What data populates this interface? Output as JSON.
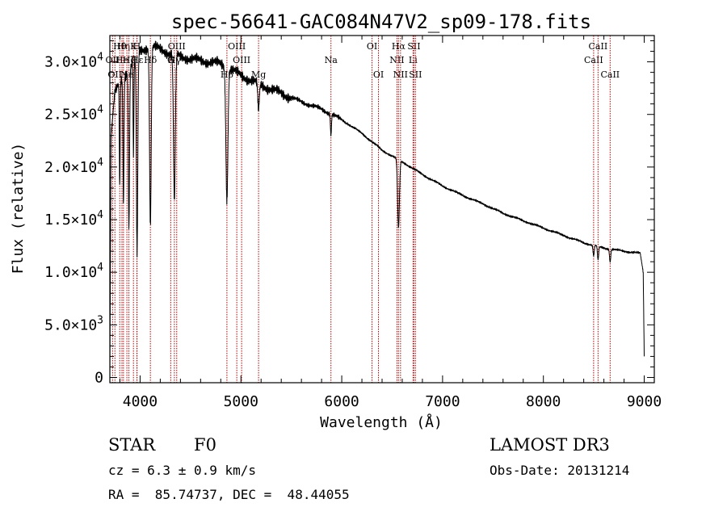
{
  "chart_data": {
    "type": "line",
    "title": "spec-56641-GAC084N47V2_sp09-178.fits",
    "xlabel": "Wavelength (Å)",
    "ylabel": "Flux (relative)",
    "xlim": [
      3700,
      9100
    ],
    "ylim": [
      -500,
      32500
    ],
    "x_ticks": [
      4000,
      5000,
      6000,
      7000,
      8000,
      9000
    ],
    "x_tick_labels": [
      "4000",
      "5000",
      "6000",
      "7000",
      "8000",
      "9000"
    ],
    "y_ticks": [
      0,
      5000,
      10000,
      15000,
      20000,
      25000,
      30000
    ],
    "y_tick_labels": [
      {
        "mantissa": "0",
        "exponent": ""
      },
      {
        "mantissa": "5.0×10",
        "exponent": "3"
      },
      {
        "mantissa": "1.0×10",
        "exponent": "4"
      },
      {
        "mantissa": "1.5×10",
        "exponent": "4"
      },
      {
        "mantissa": "2.0×10",
        "exponent": "4"
      },
      {
        "mantissa": "2.5×10",
        "exponent": "4"
      },
      {
        "mantissa": "3.0×10",
        "exponent": "4"
      }
    ],
    "series": [
      {
        "name": "spectrum",
        "continuum": [
          [
            3700,
            0
          ],
          [
            3712,
            23000
          ],
          [
            3750,
            27000
          ],
          [
            3800,
            28000
          ],
          [
            3900,
            29500
          ],
          [
            4000,
            31000
          ],
          [
            4100,
            31500
          ],
          [
            4200,
            31200
          ],
          [
            4300,
            30800
          ],
          [
            4400,
            30500
          ],
          [
            4500,
            30300
          ],
          [
            4600,
            30100
          ],
          [
            4700,
            30000
          ],
          [
            4800,
            29800
          ],
          [
            4900,
            29300
          ],
          [
            5000,
            28700
          ],
          [
            5200,
            27800
          ],
          [
            5400,
            27000
          ],
          [
            5600,
            26200
          ],
          [
            5800,
            25500
          ],
          [
            6000,
            24500
          ],
          [
            6200,
            23200
          ],
          [
            6400,
            21600
          ],
          [
            6600,
            20500
          ],
          [
            6800,
            19300
          ],
          [
            7000,
            18200
          ],
          [
            7200,
            17300
          ],
          [
            7400,
            16500
          ],
          [
            7600,
            15600
          ],
          [
            7800,
            14900
          ],
          [
            8000,
            14200
          ],
          [
            8200,
            13500
          ],
          [
            8400,
            12800
          ],
          [
            8600,
            12300
          ],
          [
            8800,
            12000
          ],
          [
            8960,
            11800
          ],
          [
            8990,
            10000
          ],
          [
            9000,
            2000
          ]
        ],
        "absorption_lines": [
          {
            "wavelength": 3798,
            "depth": 10000,
            "width": 4
          },
          {
            "wavelength": 3835,
            "depth": 12000,
            "width": 5
          },
          {
            "wavelength": 3889,
            "depth": 15000,
            "width": 6
          },
          {
            "wavelength": 3934,
            "depth": 9000,
            "width": 4
          },
          {
            "wavelength": 3970,
            "depth": 19000,
            "width": 7
          },
          {
            "wavelength": 4102,
            "depth": 17000,
            "width": 8
          },
          {
            "wavelength": 4340,
            "depth": 14000,
            "width": 9
          },
          {
            "wavelength": 4861,
            "depth": 12500,
            "width": 10
          },
          {
            "wavelength": 5175,
            "depth": 2500,
            "width": 8
          },
          {
            "wavelength": 5893,
            "depth": 2000,
            "width": 5
          },
          {
            "wavelength": 6563,
            "depth": 6500,
            "width": 9
          },
          {
            "wavelength": 8498,
            "depth": 1000,
            "width": 6
          },
          {
            "wavelength": 8542,
            "depth": 1300,
            "width": 6
          },
          {
            "wavelength": 8662,
            "depth": 1200,
            "width": 6
          }
        ]
      }
    ],
    "line_markers": [
      {
        "wavelength": 3727,
        "label": "OII",
        "row": 2
      },
      {
        "wavelength": 3750,
        "label": "OII",
        "row": 3
      },
      {
        "wavelength": 3798,
        "label": "Hθ",
        "row": 1
      },
      {
        "wavelength": 3820,
        "label": "He",
        "row": 2
      },
      {
        "wavelength": 3835,
        "label": "Hη",
        "row": 1
      },
      {
        "wavelength": 3869,
        "label": "Ne",
        "row": 3
      },
      {
        "wavelength": 3889,
        "label": "Hζ",
        "row": 2
      },
      {
        "wavelength": 3934,
        "label": "K",
        "row": 1
      },
      {
        "wavelength": 3968,
        "label": "H",
        "row": 1
      },
      {
        "wavelength": 3970,
        "label": "Hε",
        "row": 2
      },
      {
        "wavelength": 4102,
        "label": "Hδ",
        "row": 2
      },
      {
        "wavelength": 4304,
        "label": "G",
        "row": 2
      },
      {
        "wavelength": 4340,
        "label": "Hγ",
        "row": 2
      },
      {
        "wavelength": 4363,
        "label": "OIII",
        "row": 1
      },
      {
        "wavelength": 4861,
        "label": "Hβ",
        "row": 3
      },
      {
        "wavelength": 4959,
        "label": "OIII",
        "row": 1
      },
      {
        "wavelength": 5007,
        "label": "OIII",
        "row": 2
      },
      {
        "wavelength": 5175,
        "label": "Mg",
        "row": 3
      },
      {
        "wavelength": 5893,
        "label": "Na",
        "row": 2
      },
      {
        "wavelength": 6300,
        "label": "OI",
        "row": 1
      },
      {
        "wavelength": 6364,
        "label": "OI",
        "row": 3
      },
      {
        "wavelength": 6548,
        "label": "NII",
        "row": 2
      },
      {
        "wavelength": 6563,
        "label": "Hα",
        "row": 1
      },
      {
        "wavelength": 6583,
        "label": "NII",
        "row": 3
      },
      {
        "wavelength": 6707,
        "label": "Li",
        "row": 2
      },
      {
        "wavelength": 6716,
        "label": "SII",
        "row": 1
      },
      {
        "wavelength": 6731,
        "label": "SII",
        "row": 3
      },
      {
        "wavelength": 8498,
        "label": "CaII",
        "row": 2
      },
      {
        "wavelength": 8542,
        "label": "CaII",
        "row": 1
      },
      {
        "wavelength": 8662,
        "label": "CaII",
        "row": 3
      }
    ],
    "colors": {
      "spectrum": "#000000",
      "markers": "#c00000",
      "axes": "#000000",
      "background": "#ffffff"
    }
  },
  "info": {
    "class_label": "STAR",
    "subclass": "F0",
    "cz_line": "cz = 6.3 ± 0.9 km/s",
    "coords_line": "RA =  85.74737, DEC =  48.44055",
    "survey": "LAMOST DR3",
    "obs_date": "Obs-Date: 20131214"
  }
}
